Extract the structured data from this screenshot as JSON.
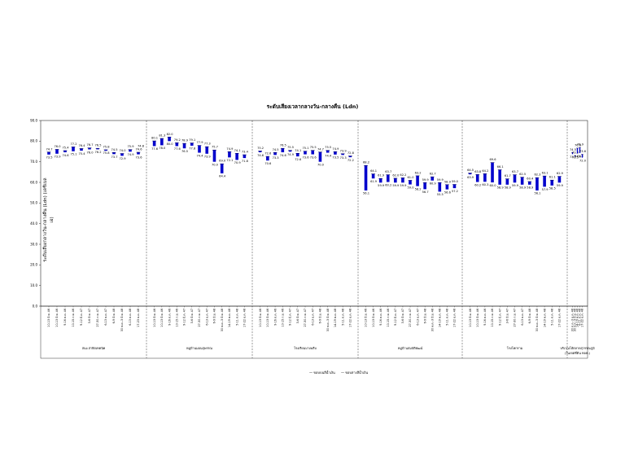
{
  "chart_data": {
    "type": "floating-bar",
    "title": "ระดับเสียงเวลากลางวัน-กลางคืน (Ldn)",
    "ylabel": "ระดับเสียงกลางวัน-กลางคืน (Ldn) (เดซิเบลเอ)",
    "ylim": [
      0,
      90
    ],
    "yticks": [
      "0.0",
      "10.0",
      "20.0",
      "30.0",
      "40.0",
      "50.0",
      "60.0",
      "70.0",
      "80.0",
      "90.0"
    ],
    "legend": [
      "— ขอบบนสีน้ำเงิน",
      "— ขอบล่างสีน้ำเงิน"
    ],
    "bar_color": "#0000cc",
    "cap_color": "#000066",
    "groups": [
      {
        "name": "สนง.สาธิตเทคนิค",
        "categories": [
          "10-13 มิ.ย. 46",
          "10-13 มิ.ย. 46",
          "9-16 ต.ค. 46",
          "10-15 ก.ย. 46",
          "9-12 มี.ค. 47",
          "3-6 มิ.ย. 47",
          "27-30 ก.ย. 47",
          "6-13 ธ.ค. 47",
          "6-9 มิ.ย. 48",
          "30 พ.ค.-3 มิ.ย. 48",
          "6-13 ต.ค. 48",
          "17-23 ธ.ค. 48"
        ],
        "top": [
          74.7,
          76.0,
          75.4,
          77.2,
          76.4,
          76.7,
          76.5,
          75.8,
          74.5,
          74.0,
          75.9,
          74.6
        ],
        "bottom": [
          73.5,
          73.9,
          74.6,
          75.1,
          75.4,
          76.0,
          76.2,
          75.8,
          73.7,
          72.9,
          74.9,
          73.6
        ],
        "extra_labels": [
          null,
          null,
          null,
          null,
          null,
          null,
          null,
          null,
          null,
          null,
          null,
          74.8
        ]
      },
      {
        "name": "หมู่บ้านมอนสุพรรณ",
        "categories": [
          "10-13 มิ.ย. 46",
          "10-13 มิ.ย. 46",
          "9-16 ต.ค. 46",
          "10-15 ก.ย. 46",
          "9-12 มี.ค. 47",
          "3-6 มิ.ย. 47",
          "27-30 ก.ย. 47",
          "6-13 ธ.ค. 47",
          "6-9 มิ.ย. 48",
          "30 พ.ค.-3 มิ.ย. 48",
          "14-19 พ.ค. 48",
          "5-11 ต.ค. 48",
          "17-22 ธ.ค. 48"
        ],
        "top": [
          80.1,
          81.3,
          82.0,
          79.2,
          78.9,
          79.1,
          77.9,
          77.3,
          75.7,
          69.0,
          74.9,
          74.1,
          73.4
        ],
        "bottom": [
          77.6,
          78.0,
          80.0,
          77.6,
          76.5,
          77.8,
          74.4,
          73.9,
          70.0,
          64.4,
          72.1,
          70.9,
          71.8
        ],
        "extra_labels": []
      },
      {
        "name": "โรงเรียนบางพลีบ",
        "categories": [
          "10-13 มิ.ย. 46",
          "10-13 มิ.ย. 46",
          "9-16 ต.ค. 46",
          "10-15 ก.ย. 46",
          "9-12 มี.ค. 47",
          "3-6 มิ.ย. 47",
          "27-30 ก.ย. 47",
          "6-13 ธ.ค. 47",
          "6-9 มิ.ย. 48",
          "30 พ.ค.-3 มิ.ย. 48",
          "14-19 พ.ค. 48",
          "5-11 ต.ค. 48",
          "17-22 ธ.ค. 48"
        ],
        "top": [
          75.2,
          72.6,
          74.5,
          76.5,
          75.5,
          74.1,
          75.1,
          75.5,
          74.7,
          75.5,
          74.9,
          73.9,
          72.8
        ],
        "bottom": [
          74.6,
          70.6,
          73.3,
          74.6,
          74.9,
          72.6,
          73.6,
          73.6,
          70.0,
          74.4,
          73.5,
          73.3,
          72.2
        ],
        "extra_labels": []
      },
      {
        "name": "หมู่บ้านสมบัติพัฒน์",
        "categories": [
          "10-13 มิ.ย. 46",
          "10-13 มิ.ย. 46",
          "9-16 ต.ค. 46",
          "10-15 ก.ย. 46",
          "9-12 มี.ค. 47",
          "3-6 มิ.ย. 47",
          "27-30 ก.ย. 47",
          "6-13 ธ.ค. 47",
          "6-9 มิ.ย. 48",
          "30 พ.ค.-3 มิ.ย. 48",
          "14-19 พ.ค. 48",
          "5-11 ต.ค. 48",
          "17-22 ธ.ค. 48"
        ],
        "top": [
          68.2,
          64.1,
          61.9,
          63.7,
          62.0,
          62.2,
          61.0,
          63.2,
          59.9,
          62.7,
          59.9,
          58.9,
          59.0
        ],
        "bottom": [
          56.1,
          61.9,
          59.9,
          60.2,
          59.9,
          59.9,
          59.0,
          58.2,
          56.7,
          60.9,
          55.5,
          56.6,
          57.2
        ],
        "extra_labels": []
      },
      {
        "name": "โรงโคกราม",
        "categories": [
          "10-13 มิ.ย. 46",
          "10-13 มิ.ย. 46",
          "9-16 ต.ค. 46",
          "10-15 ก.ย. 46",
          "9-12 มี.ค. 47",
          "3-6 มิ.ย. 47",
          "27-30 ก.ย. 47",
          "6-13 ธ.ค. 47",
          "6-9 มิ.ย. 48",
          "30 พ.ค.-3 มิ.ย. 48",
          "14-19 พ.ค. 48",
          "5-11 ต.ค. 48",
          "17-22 ธ.ค. 48"
        ],
        "top": [
          64.5,
          63.8,
          64.2,
          69.6,
          66.1,
          61.7,
          63.7,
          62.5,
          60.4,
          62.3,
          63.1,
          61.1,
          62.9
        ],
        "bottom": [
          63.9,
          60.2,
          60.3,
          60.0,
          58.9,
          58.9,
          59.9,
          58.9,
          58.9,
          56.1,
          57.9,
          58.5,
          59.9
        ],
        "extra_labels": []
      },
      {
        "name": "บริเวณโฮ้ตลาดสุวรรณภูมิ",
        "name2": "(ในเขตที่ดิน ทอท.)",
        "categories": [
          "30 ต.ค.-3 ธ.ค. 48",
          "30 พ.ค.-3 มิ.ย. 48",
          "14-19 พ.ค. 48",
          "6-11 ต.ค. 48",
          "17-22 ธ.ค. 48"
        ],
        "top": [
          74.5,
          73.0,
          76.6,
          76.9,
          73.6
        ],
        "bottom": [
          73.7,
          73.5,
          74.0,
          74.2,
          72.0
        ],
        "extra_labels": []
      }
    ]
  }
}
